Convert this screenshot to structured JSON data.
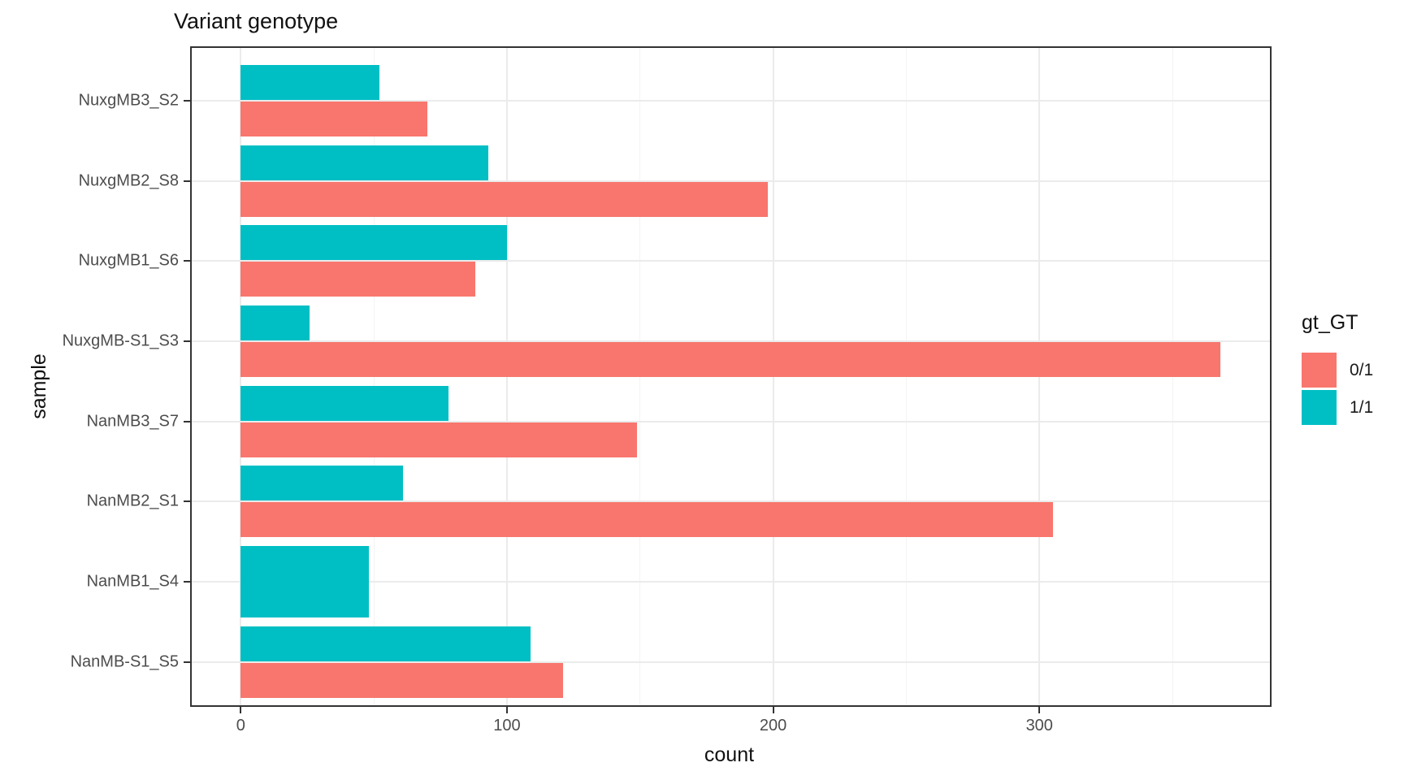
{
  "chart_data": {
    "type": "bar",
    "orientation": "horizontal",
    "title": "Variant genotype",
    "xlabel": "count",
    "ylabel": "sample",
    "categories": [
      "NuxgMB3_S2",
      "NuxgMB2_S8",
      "NuxgMB1_S6",
      "NuxgMB-S1_S3",
      "NanMB3_S7",
      "NanMB2_S1",
      "NanMB1_S4",
      "NanMB-S1_S5"
    ],
    "series": [
      {
        "name": "0/1",
        "color": "#F8766D",
        "values": [
          70,
          198,
          88,
          368,
          149,
          305,
          null,
          121
        ]
      },
      {
        "name": "1/1",
        "color": "#00BFC4",
        "values": [
          52,
          93,
          100,
          26,
          78,
          61,
          48,
          109
        ]
      }
    ],
    "x_ticks": [
      0,
      100,
      200,
      300
    ],
    "x_minor_ticks": [
      50,
      150,
      250,
      350
    ],
    "xlim": [
      -18.4,
      386.6
    ],
    "legend_title": "gt_GT",
    "legend_position": "right",
    "grid": true,
    "colors": {
      "het": "#F8766D",
      "hom": "#00BFC4",
      "axis_text": "#4d4d4d",
      "panel_border": "#333333",
      "gridline": "#ebebeb"
    }
  }
}
